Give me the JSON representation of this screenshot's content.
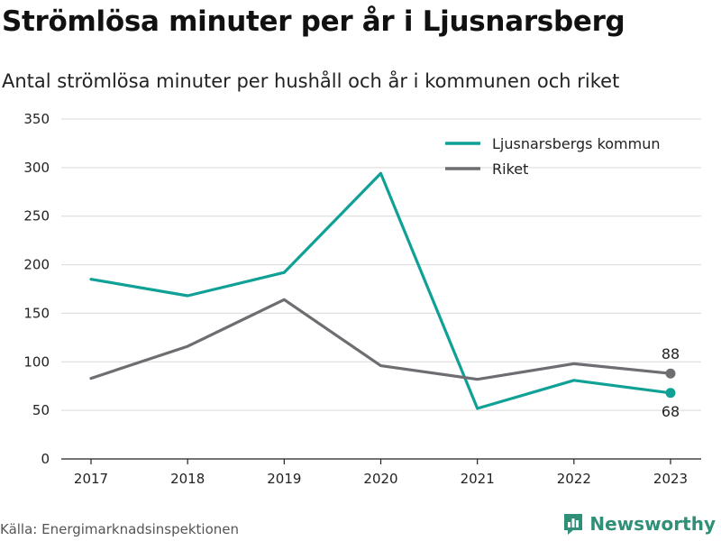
{
  "title": "Strömlösa minuter per år i Ljusnarsberg",
  "subtitle": "Antal strömlösa minuter per hushåll och år i kommunen och riket",
  "source": "Källa: Energimarknadsinspektionen",
  "brand": {
    "name": "Newsworthy",
    "icon": "bar-chart-logo-icon",
    "color": "#2f8f78"
  },
  "chart_data": {
    "type": "line",
    "title": "",
    "xlabel": "",
    "ylabel": "",
    "x": [
      2017,
      2018,
      2019,
      2020,
      2021,
      2022,
      2023
    ],
    "x_tick_labels": [
      "2017",
      "2018",
      "2019",
      "2020",
      "2021",
      "2022",
      "2023"
    ],
    "ylim": [
      0,
      350
    ],
    "y_ticks": [
      0,
      50,
      100,
      150,
      200,
      250,
      300,
      350
    ],
    "y_tick_labels": [
      "0",
      "50",
      "100",
      "150",
      "200",
      "250",
      "300",
      "350"
    ],
    "grid": "horizontal",
    "legend_position": "top-right",
    "series": [
      {
        "name": "Ljusnarsbergs kommun",
        "color": "#0fa096",
        "values": [
          185,
          168,
          192,
          294,
          52,
          81,
          68
        ],
        "end_label": "68"
      },
      {
        "name": "Riket",
        "color": "#6e6d72",
        "values": [
          83,
          116,
          164,
          96,
          82,
          98,
          88
        ],
        "end_label": "88"
      }
    ]
  }
}
